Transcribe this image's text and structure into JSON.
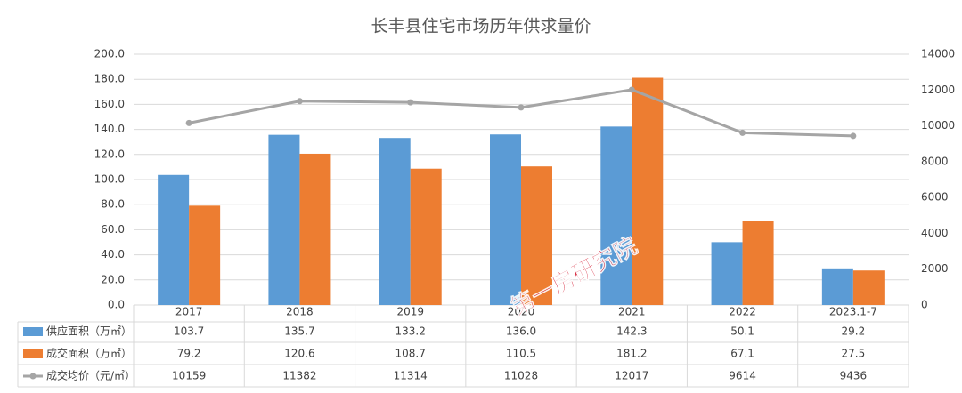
{
  "chart_data": {
    "type": "bar",
    "title": "长丰县住宅市场历年供求量价",
    "categories": [
      "2017",
      "2018",
      "2019",
      "2020",
      "2021",
      "2022",
      "2023.1-7"
    ],
    "series": [
      {
        "name": "供应面积（万㎡）",
        "type": "bar",
        "color": "#5b9bd5",
        "values": [
          103.7,
          135.7,
          133.2,
          136.0,
          142.3,
          50.1,
          29.2
        ],
        "value_labels": [
          "103.7",
          "135.7",
          "133.2",
          "136.0",
          "142.3",
          "50.1",
          "29.2"
        ]
      },
      {
        "name": "成交面积（万㎡）",
        "type": "bar",
        "color": "#ed7d31",
        "values": [
          79.2,
          120.6,
          108.7,
          110.5,
          181.2,
          67.1,
          27.5
        ],
        "value_labels": [
          "79.2",
          "120.6",
          "108.7",
          "110.5",
          "181.2",
          "67.1",
          "27.5"
        ]
      },
      {
        "name": "成交均价（元/㎡）",
        "type": "line",
        "color": "#a5a5a5",
        "axis": "y2",
        "values": [
          10159,
          11382,
          11314,
          11028,
          12017,
          9614,
          9436
        ]
      }
    ],
    "ylim": [
      0,
      200
    ],
    "yticks": [
      {
        "value": 0,
        "label": "0.0"
      },
      {
        "value": 20,
        "label": "20.0"
      },
      {
        "value": 40,
        "label": "40.0"
      },
      {
        "value": 60,
        "label": "60.0"
      },
      {
        "value": 80,
        "label": "80.0"
      },
      {
        "value": 100,
        "label": "100.0"
      },
      {
        "value": 120,
        "label": "120.0"
      },
      {
        "value": 140,
        "label": "140.0"
      },
      {
        "value": 160,
        "label": "160.0"
      },
      {
        "value": 180,
        "label": "180.0"
      },
      {
        "value": 200,
        "label": "200.0"
      }
    ],
    "y2lim": [
      0,
      14000
    ],
    "y2ticks": [
      0,
      2000,
      4000,
      6000,
      8000,
      10000,
      12000,
      14000
    ],
    "grid": true,
    "watermark": "第一房研究院"
  }
}
